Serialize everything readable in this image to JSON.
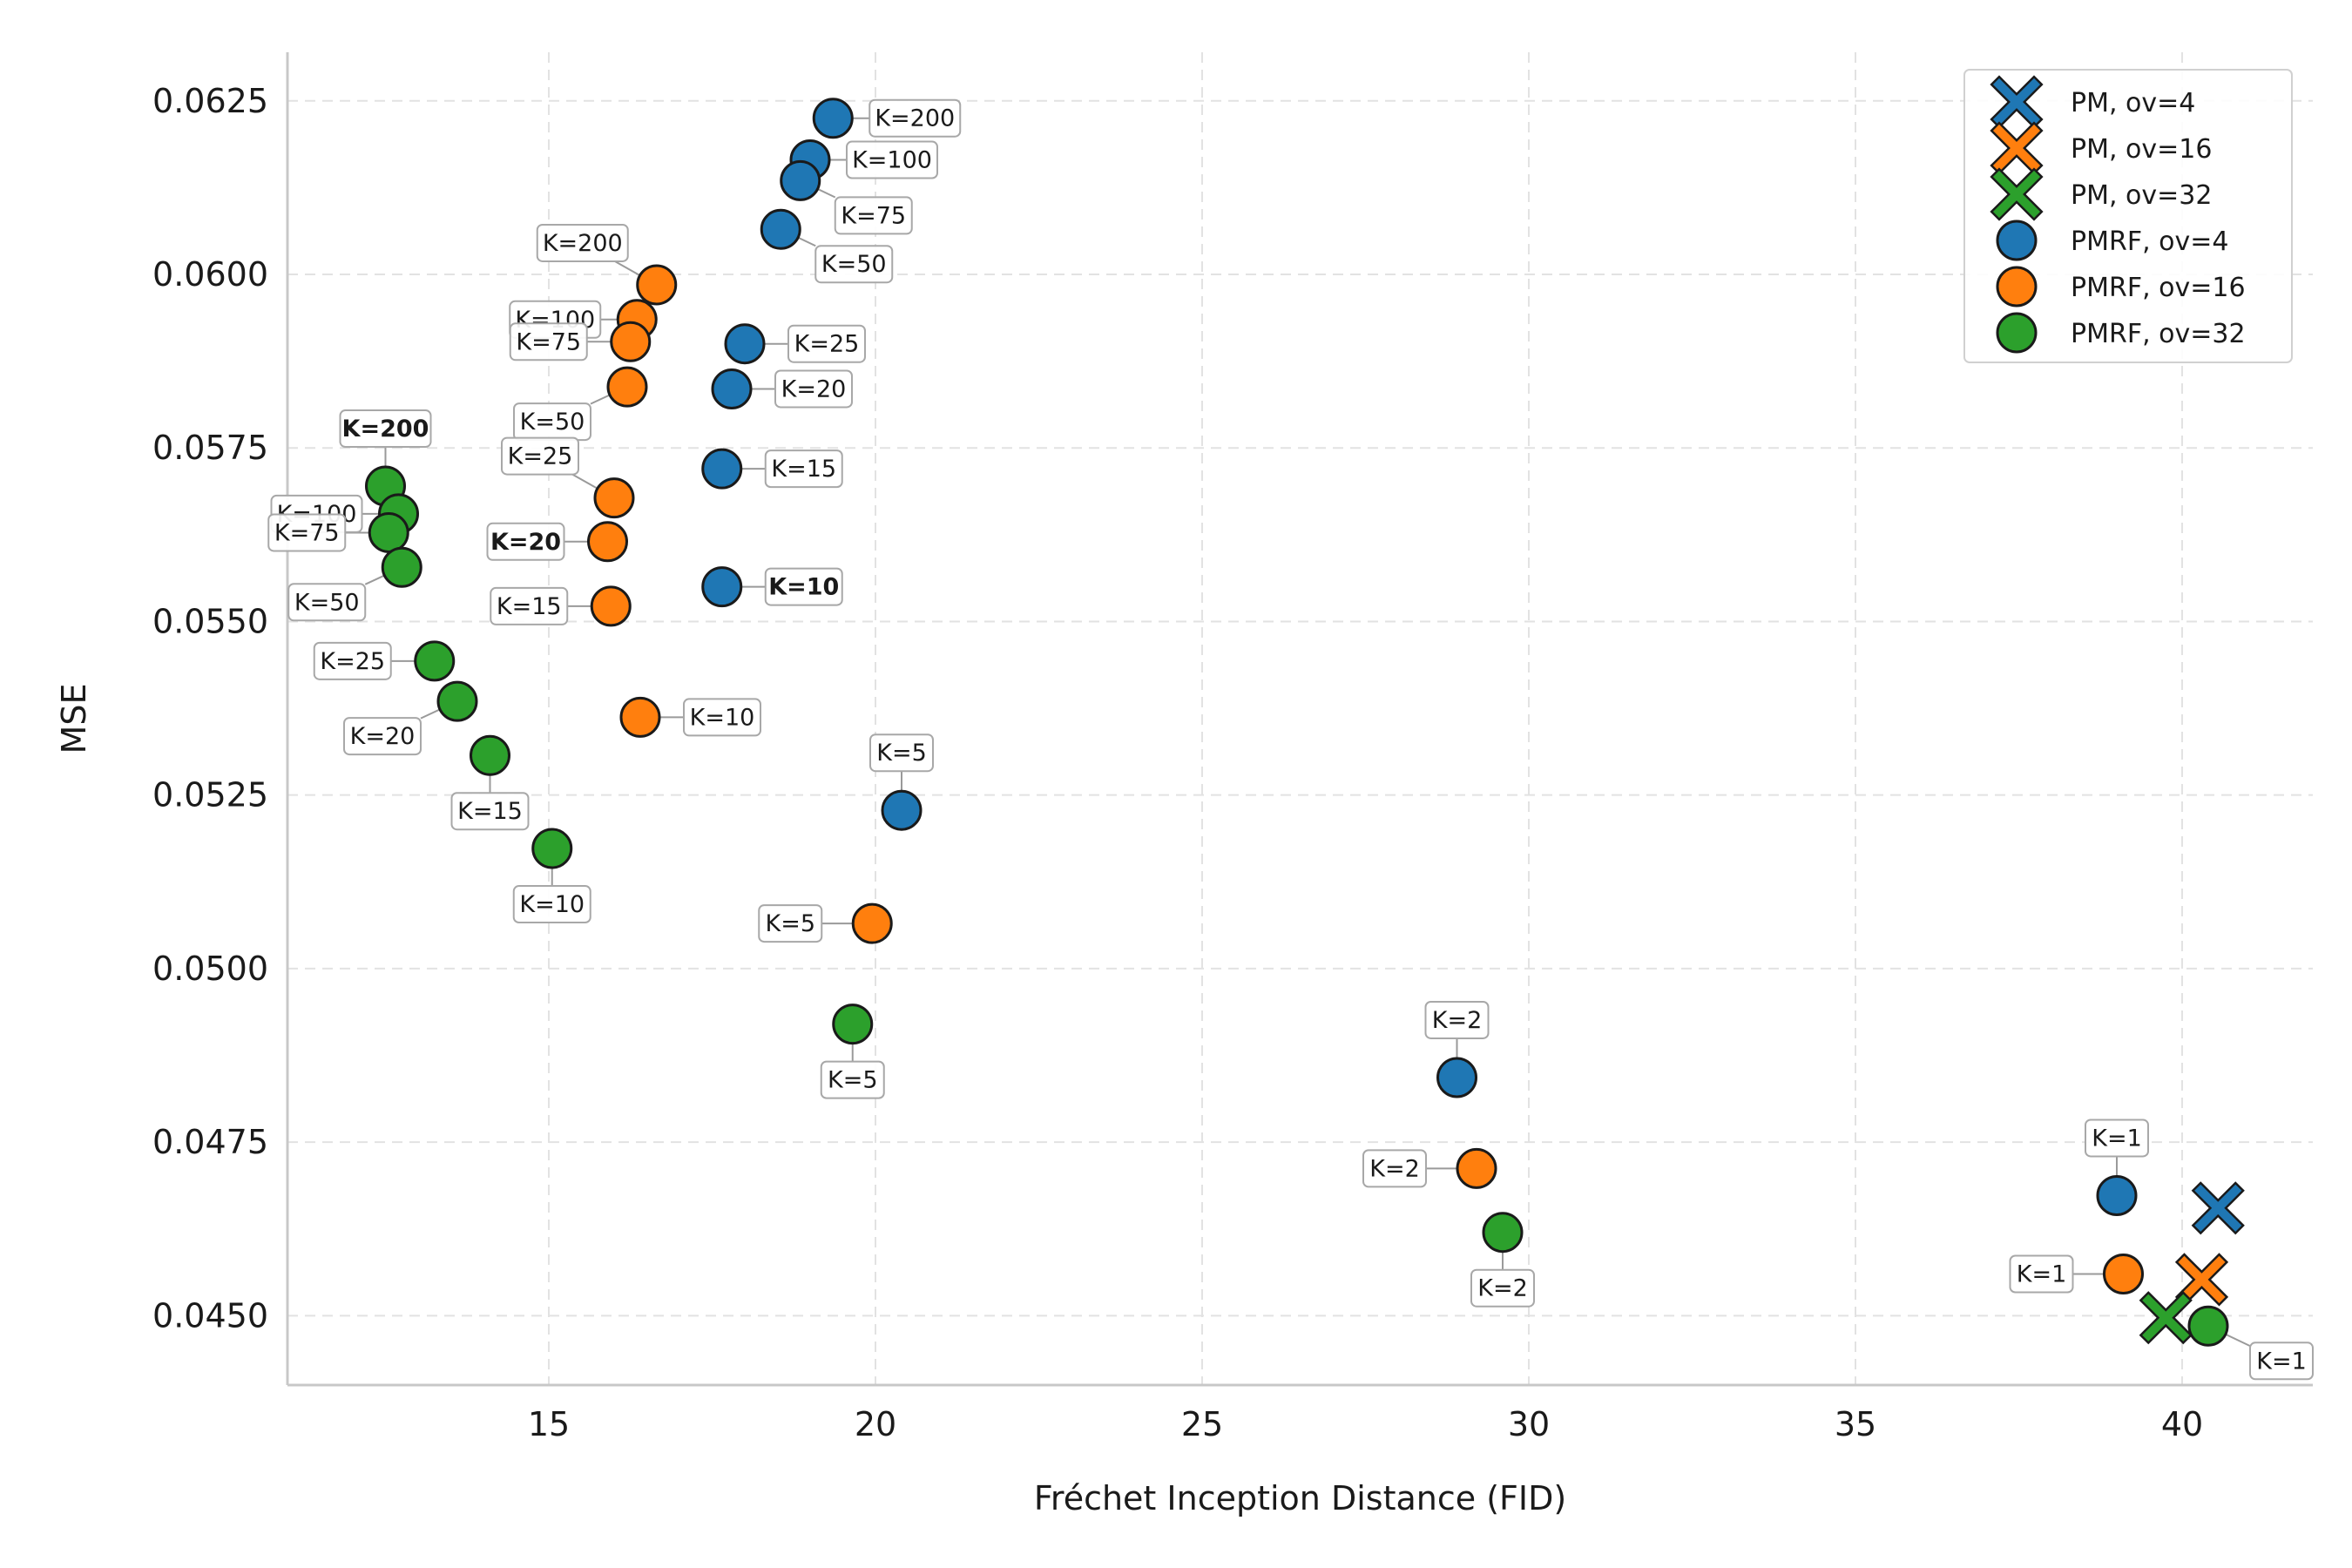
{
  "chart_data": {
    "type": "scatter",
    "xlabel": "Fréchet Inception Distance (FID)",
    "ylabel": "MSE",
    "xlim": [
      11,
      42
    ],
    "ylim": [
      0.044,
      0.0632
    ],
    "x_ticks": [
      15,
      20,
      25,
      30,
      35,
      40
    ],
    "x_tick_labels": [
      "15",
      "20",
      "25",
      "30",
      "35",
      "40"
    ],
    "y_ticks": [
      0.045,
      0.0475,
      0.05,
      0.0525,
      0.055,
      0.0575,
      0.06,
      0.0625
    ],
    "y_tick_labels": [
      "0.0450",
      "0.0475",
      "0.0500",
      "0.0525",
      "0.0550",
      "0.0575",
      "0.0600",
      "0.0625"
    ],
    "grid": true,
    "legend_position": "top-right",
    "colors": {
      "ov4": "#1f77b4",
      "ov16": "#ff7f0e",
      "ov32": "#2ca02c"
    },
    "series": [
      {
        "name": "PM, ov=4",
        "marker": "x",
        "color": "#1f77b4",
        "points": [
          {
            "x": 40.55,
            "y": 0.04655
          }
        ]
      },
      {
        "name": "PM, ov=16",
        "marker": "x",
        "color": "#ff7f0e",
        "points": [
          {
            "x": 40.3,
            "y": 0.04552
          }
        ]
      },
      {
        "name": "PM, ov=32",
        "marker": "x",
        "color": "#2ca02c",
        "points": [
          {
            "x": 39.75,
            "y": 0.04497
          }
        ]
      },
      {
        "name": "PMRF, ov=4",
        "marker": "o",
        "color": "#1f77b4",
        "points": [
          {
            "x": 19.35,
            "y": 0.06225,
            "label": "K=200",
            "bold": false,
            "pos": "right"
          },
          {
            "x": 19.0,
            "y": 0.06165,
            "label": "K=100",
            "bold": false,
            "pos": "right"
          },
          {
            "x": 18.85,
            "y": 0.06135,
            "label": "K=75",
            "bold": false,
            "pos": "below-right"
          },
          {
            "x": 18.55,
            "y": 0.06065,
            "label": "K=50",
            "bold": false,
            "pos": "below-right"
          },
          {
            "x": 18.0,
            "y": 0.059,
            "label": "K=25",
            "bold": false,
            "pos": "right"
          },
          {
            "x": 17.8,
            "y": 0.05835,
            "label": "K=20",
            "bold": false,
            "pos": "right"
          },
          {
            "x": 17.65,
            "y": 0.0572,
            "label": "K=15",
            "bold": false,
            "pos": "right"
          },
          {
            "x": 17.65,
            "y": 0.0555,
            "label": "K=10",
            "bold": true,
            "pos": "right"
          },
          {
            "x": 20.4,
            "y": 0.05228,
            "label": "K=5",
            "bold": false,
            "pos": "above"
          },
          {
            "x": 28.9,
            "y": 0.04843,
            "label": "K=2",
            "bold": false,
            "pos": "above"
          },
          {
            "x": 39.0,
            "y": 0.04673,
            "label": "K=1",
            "bold": false,
            "pos": "above"
          }
        ]
      },
      {
        "name": "PMRF, ov=16",
        "marker": "o",
        "color": "#ff7f0e",
        "points": [
          {
            "x": 16.65,
            "y": 0.05985,
            "label": "K=200",
            "bold": false,
            "pos": "above-left"
          },
          {
            "x": 16.35,
            "y": 0.05935,
            "label": "K=100",
            "bold": false,
            "pos": "left"
          },
          {
            "x": 16.25,
            "y": 0.05903,
            "label": "K=75",
            "bold": false,
            "pos": "left"
          },
          {
            "x": 16.2,
            "y": 0.05838,
            "label": "K=50",
            "bold": false,
            "pos": "below-left"
          },
          {
            "x": 16.0,
            "y": 0.05678,
            "label": "K=25",
            "bold": false,
            "pos": "above-left"
          },
          {
            "x": 15.9,
            "y": 0.05615,
            "label": "K=20",
            "bold": true,
            "pos": "left"
          },
          {
            "x": 15.95,
            "y": 0.05522,
            "label": "K=15",
            "bold": false,
            "pos": "left"
          },
          {
            "x": 16.4,
            "y": 0.05362,
            "label": "K=10",
            "bold": false,
            "pos": "right"
          },
          {
            "x": 19.95,
            "y": 0.05065,
            "label": "K=5",
            "bold": false,
            "pos": "left"
          },
          {
            "x": 29.2,
            "y": 0.04712,
            "label": "K=2",
            "bold": false,
            "pos": "left"
          },
          {
            "x": 39.1,
            "y": 0.0456,
            "label": "K=1",
            "bold": false,
            "pos": "left"
          }
        ]
      },
      {
        "name": "PMRF, ov=32",
        "marker": "o",
        "color": "#2ca02c",
        "points": [
          {
            "x": 12.5,
            "y": 0.05695,
            "label": "K=200",
            "bold": true,
            "pos": "above"
          },
          {
            "x": 12.7,
            "y": 0.05655,
            "label": "K=100",
            "bold": false,
            "pos": "left"
          },
          {
            "x": 12.55,
            "y": 0.05628,
            "label": "K=75",
            "bold": false,
            "pos": "left"
          },
          {
            "x": 12.75,
            "y": 0.05578,
            "label": "K=50",
            "bold": false,
            "pos": "below-left"
          },
          {
            "x": 13.25,
            "y": 0.05443,
            "label": "K=25",
            "bold": false,
            "pos": "left"
          },
          {
            "x": 13.6,
            "y": 0.05385,
            "label": "K=20",
            "bold": false,
            "pos": "below-left"
          },
          {
            "x": 14.1,
            "y": 0.05307,
            "label": "K=15",
            "bold": false,
            "pos": "below"
          },
          {
            "x": 15.05,
            "y": 0.05173,
            "label": "K=10",
            "bold": false,
            "pos": "below"
          },
          {
            "x": 19.65,
            "y": 0.0492,
            "label": "K=5",
            "bold": false,
            "pos": "below"
          },
          {
            "x": 29.6,
            "y": 0.0462,
            "label": "K=2",
            "bold": false,
            "pos": "below"
          },
          {
            "x": 40.4,
            "y": 0.04485,
            "label": "K=1",
            "bold": false,
            "pos": "below-right"
          }
        ]
      }
    ]
  }
}
